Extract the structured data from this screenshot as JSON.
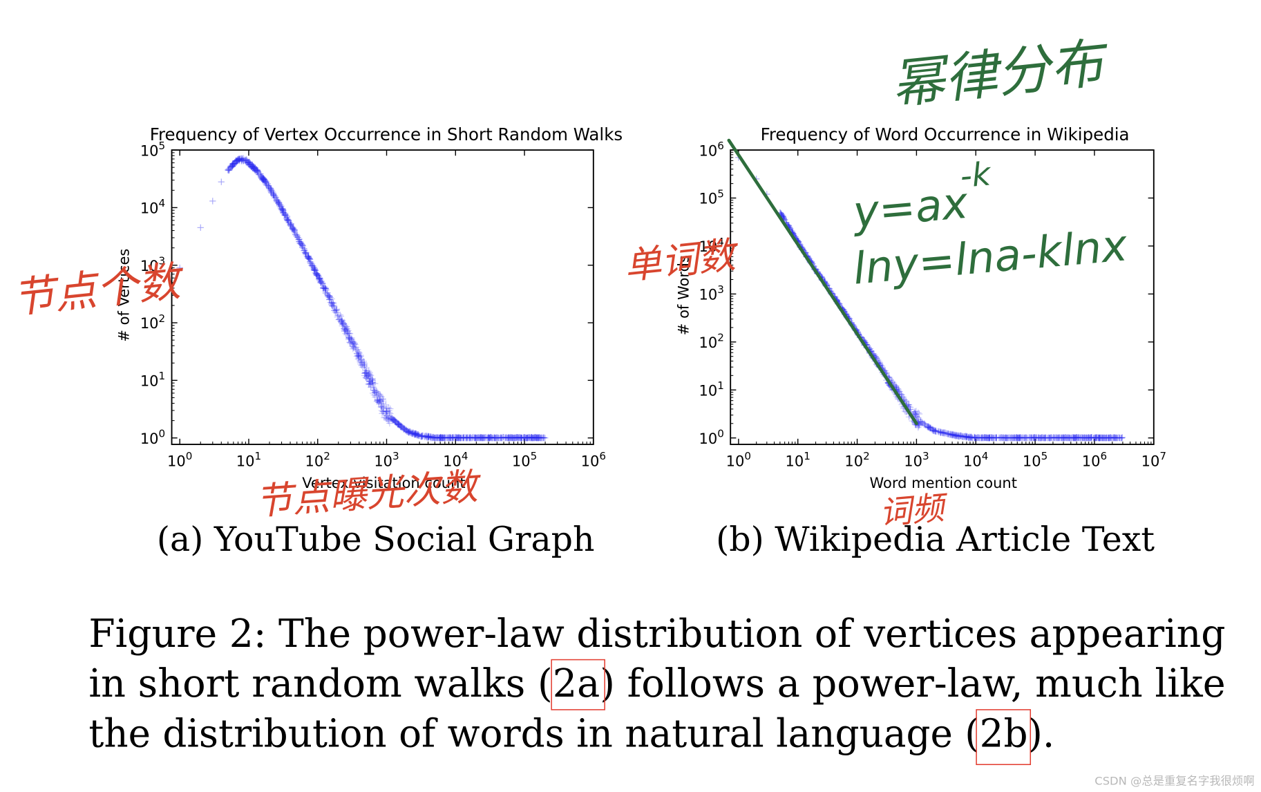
{
  "colors": {
    "points": "#2a2af0",
    "fit_line": "#2e6e3c",
    "annotation_red": "#d8452e",
    "annotation_green": "#2e6e3c",
    "citation_box": "#e23b2e",
    "axes": "#000000"
  },
  "chart_data": [
    {
      "id": "a",
      "type": "scatter",
      "title": "Frequency of Vertex Occurrence in Short Random Walks",
      "xlabel": "Vertex visitation count",
      "ylabel": "# of Vertices",
      "x_scale": "log",
      "y_scale": "log",
      "xlim": [
        1,
        1000000
      ],
      "ylim": [
        1,
        100000
      ],
      "x_ticks": [
        1,
        10,
        100,
        1000,
        10000,
        100000,
        1000000
      ],
      "y_ticks": [
        1,
        10,
        100,
        1000,
        10000,
        100000
      ],
      "marker": "+",
      "series": [
        {
          "x": [
            1,
            2,
            3,
            4,
            5,
            6,
            7,
            8,
            9,
            10,
            13,
            16,
            20,
            25,
            32,
            40,
            50,
            63,
            80,
            100,
            126,
            160,
            200,
            250,
            316,
            400,
            500,
            630,
            800,
            1000,
            1300,
            1600,
            2000,
            3000,
            5000,
            10000,
            20000,
            50000,
            100000,
            200000
          ],
          "y": [
            900,
            4500,
            13000,
            28000,
            45000,
            58000,
            66000,
            68000,
            66000,
            60000,
            44000,
            32000,
            22000,
            14000,
            8500,
            5200,
            3200,
            1900,
            1100,
            650,
            390,
            230,
            135,
            80,
            45,
            25,
            14,
            8,
            4.5,
            2.5,
            2,
            1.6,
            1.3,
            1.1,
            1,
            1,
            1,
            1,
            1,
            1
          ]
        }
      ],
      "annotations": [
        "节点个数",
        "节点曝光次数"
      ]
    },
    {
      "id": "b",
      "type": "scatter",
      "title": "Frequency of Word Occurrence in Wikipedia",
      "xlabel": "Word mention count",
      "ylabel": "# of Words",
      "x_scale": "log",
      "y_scale": "log",
      "xlim": [
        1,
        10000000
      ],
      "ylim": [
        1,
        1000000
      ],
      "x_ticks": [
        1,
        10,
        100,
        1000,
        10000,
        100000,
        1000000,
        10000000
      ],
      "y_ticks": [
        1,
        10,
        100,
        1000,
        10000,
        100000,
        1000000
      ],
      "marker": "+",
      "series": [
        {
          "x": [
            1,
            2,
            3,
            5,
            10,
            20,
            50,
            100,
            200,
            400,
            700,
            1000,
            2000,
            5000,
            10000,
            100000,
            1000000,
            3000000
          ],
          "y": [
            700000,
            250000,
            120000,
            50000,
            12000,
            3200,
            600,
            160,
            45,
            12,
            4,
            2.5,
            1.4,
            1.1,
            1,
            1,
            1,
            1
          ]
        }
      ],
      "fit_line": {
        "x": [
          1,
          1000
        ],
        "y": [
          1000000,
          2
        ]
      },
      "annotations": [
        "幂律分布",
        "单词数",
        "词频"
      ],
      "equations": [
        "y=ax^-k",
        "lny=lna-klnx"
      ]
    }
  ],
  "subcaptions": {
    "a": "(a) YouTube Social Graph",
    "b": "(b) Wikipedia Article Text"
  },
  "caption": {
    "line1": "Figure 2: The power-law distribution of vertices appearing",
    "line2_pre": "in short random walks (",
    "line2_ref": "2a",
    "line2_post": ") follows a power-law, much like",
    "line3_pre": "the distribution of words in natural language (",
    "line3_ref": "2b",
    "line3_post": ")."
  },
  "annotations": {
    "a_ylabel_note": "节点个数",
    "a_xlabel_note": "节点曝光次数",
    "b_title_note": "幂律分布",
    "b_ylabel_note": "单词数",
    "b_xlabel_note": "词频",
    "eq1": "y=ax",
    "eq1_exp": "-k",
    "eq2": "lny=lna-klnx"
  },
  "watermark": "CSDN @总是重复名字我很烦啊"
}
